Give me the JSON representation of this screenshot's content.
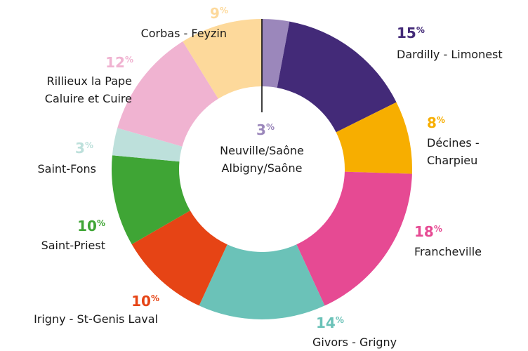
{
  "chart_data": {
    "type": "donut",
    "categories": [
      "Neuville/Saône\nAlbigny/Saône",
      "Dardilly - Limonest",
      "Décines -\nCharpieu",
      "Francheville",
      "Givors - Grigny",
      "Irigny - St-Genis Laval",
      "Saint-Priest",
      "Saint-Fons",
      "Rillieux la Pape\nCaluire et Cuire",
      "Corbas - Feyzin"
    ],
    "values": [
      3,
      15,
      8,
      18,
      14,
      10,
      10,
      3,
      12,
      9
    ],
    "value_labels": [
      "3%",
      "15%",
      "8%",
      "18%",
      "14%",
      "10%",
      "10%",
      "3%",
      "12%",
      "9%"
    ],
    "colors": [
      "#9b87bb",
      "#432a78",
      "#f7ae00",
      "#e64a93",
      "#6bc2b8",
      "#e64415",
      "#3fa535",
      "#bde0db",
      "#f0b3d1",
      "#fdd99b"
    ]
  }
}
